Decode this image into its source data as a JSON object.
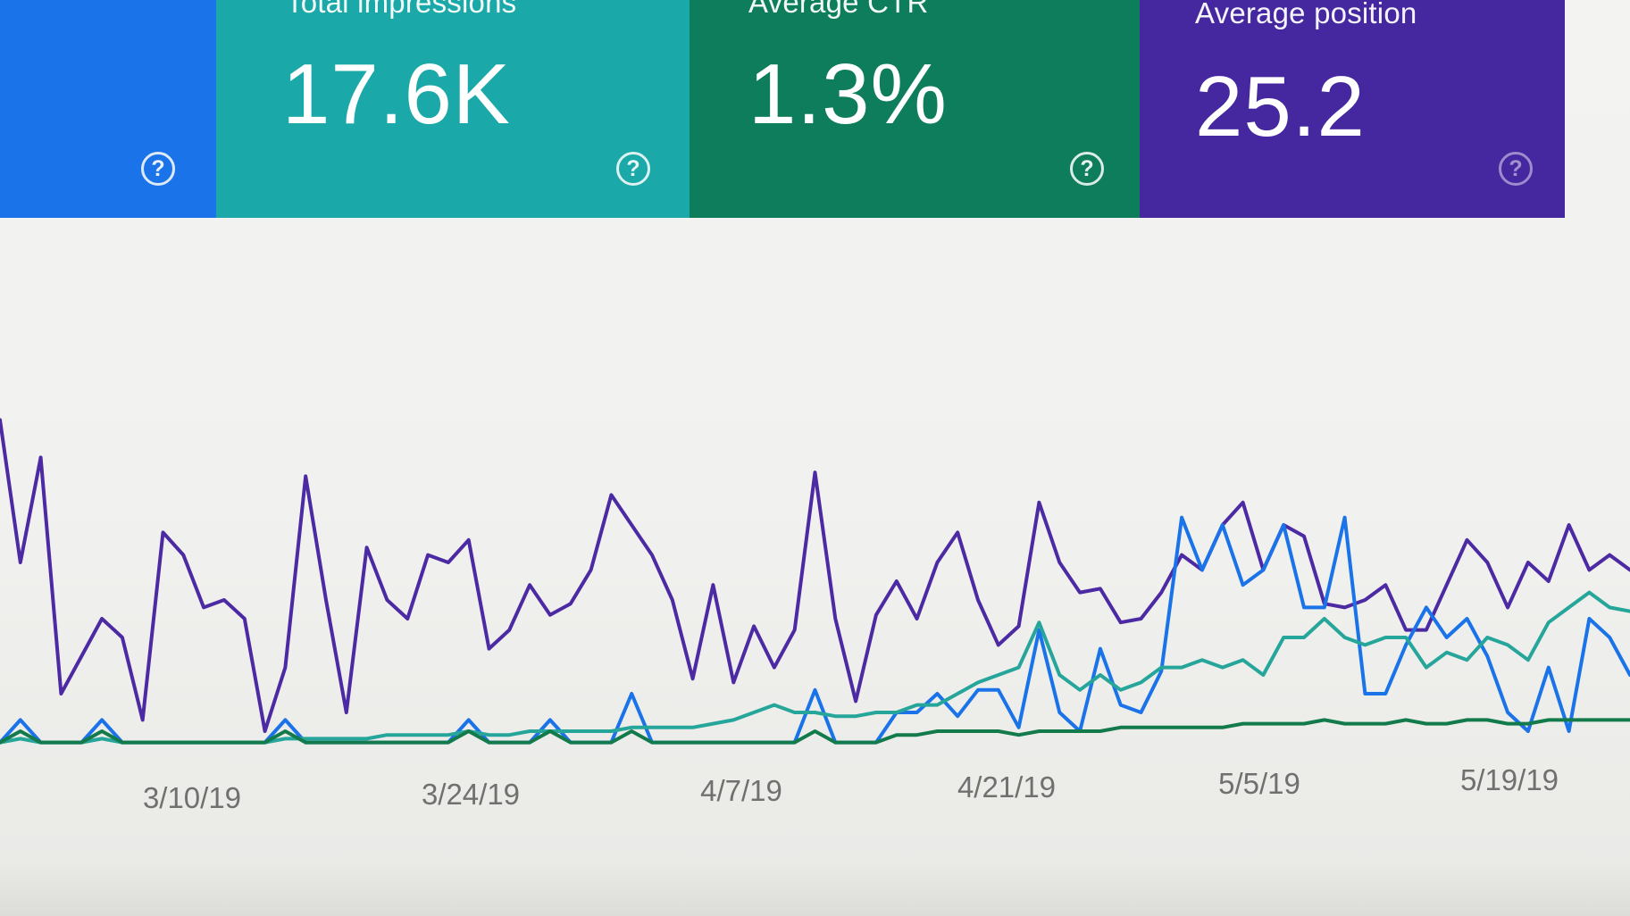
{
  "cards": [
    {
      "label": "",
      "value": "",
      "color": "#1a73e8",
      "help": "?"
    },
    {
      "label": "Total impressions",
      "value": "17.6K",
      "color": "#1aa8a8",
      "help": "?"
    },
    {
      "label": "Average CTR",
      "value": "1.3%",
      "color": "#0d7d5b",
      "help": "?"
    },
    {
      "label": "Average position",
      "value": "25.2",
      "color": "#4527a0",
      "help": "?"
    }
  ],
  "chart_data": {
    "type": "line",
    "x_tick_labels": [
      "3/10/19",
      "3/24/19",
      "4/7/19",
      "4/21/19",
      "5/5/19",
      "5/19/19"
    ],
    "ylim": [
      0,
      1
    ],
    "grid": false,
    "series": [
      {
        "color": "#4b2aa3",
        "values": [
          0.88,
          0.5,
          0.78,
          0.15,
          0.25,
          0.35,
          0.3,
          0.08,
          0.58,
          0.52,
          0.38,
          0.4,
          0.35,
          0.05,
          0.22,
          0.73,
          0.4,
          0.1,
          0.54,
          0.4,
          0.35,
          0.52,
          0.5,
          0.56,
          0.27,
          0.32,
          0.44,
          0.36,
          0.39,
          0.48,
          0.68,
          0.6,
          0.52,
          0.4,
          0.19,
          0.44,
          0.18,
          0.33,
          0.22,
          0.32,
          0.74,
          0.35,
          0.13,
          0.36,
          0.45,
          0.35,
          0.5,
          0.58,
          0.4,
          0.28,
          0.33,
          0.66,
          0.5,
          0.42,
          0.43,
          0.34,
          0.35,
          0.42,
          0.52,
          0.48,
          0.6,
          0.66,
          0.48,
          0.6,
          0.57,
          0.39,
          0.38,
          0.4,
          0.44,
          0.32,
          0.32,
          0.44,
          0.56,
          0.5,
          0.38,
          0.5,
          0.45,
          0.6,
          0.48,
          0.52,
          0.48
        ]
      },
      {
        "color": "#1a73e8",
        "values": [
          0.02,
          0.08,
          0.02,
          0.02,
          0.02,
          0.08,
          0.02,
          0.02,
          0.02,
          0.02,
          0.02,
          0.02,
          0.02,
          0.02,
          0.08,
          0.02,
          0.02,
          0.02,
          0.02,
          0.02,
          0.02,
          0.02,
          0.02,
          0.08,
          0.02,
          0.02,
          0.02,
          0.08,
          0.02,
          0.02,
          0.02,
          0.15,
          0.02,
          0.02,
          0.02,
          0.02,
          0.02,
          0.02,
          0.02,
          0.02,
          0.16,
          0.02,
          0.02,
          0.02,
          0.1,
          0.1,
          0.15,
          0.09,
          0.16,
          0.16,
          0.06,
          0.32,
          0.1,
          0.05,
          0.27,
          0.12,
          0.1,
          0.21,
          0.62,
          0.48,
          0.6,
          0.44,
          0.48,
          0.6,
          0.38,
          0.38,
          0.62,
          0.15,
          0.15,
          0.28,
          0.38,
          0.3,
          0.35,
          0.25,
          0.1,
          0.05,
          0.22,
          0.05,
          0.35,
          0.3,
          0.2
        ]
      },
      {
        "color": "#26a69a",
        "values": [
          0.02,
          0.03,
          0.02,
          0.02,
          0.02,
          0.03,
          0.02,
          0.02,
          0.02,
          0.02,
          0.02,
          0.02,
          0.02,
          0.02,
          0.03,
          0.03,
          0.03,
          0.03,
          0.03,
          0.04,
          0.04,
          0.04,
          0.04,
          0.05,
          0.04,
          0.04,
          0.05,
          0.05,
          0.05,
          0.05,
          0.05,
          0.06,
          0.06,
          0.06,
          0.06,
          0.07,
          0.08,
          0.1,
          0.12,
          0.1,
          0.1,
          0.09,
          0.09,
          0.1,
          0.1,
          0.12,
          0.12,
          0.15,
          0.18,
          0.2,
          0.22,
          0.34,
          0.2,
          0.16,
          0.2,
          0.16,
          0.18,
          0.22,
          0.22,
          0.24,
          0.22,
          0.24,
          0.2,
          0.3,
          0.3,
          0.35,
          0.3,
          0.28,
          0.3,
          0.3,
          0.22,
          0.26,
          0.24,
          0.3,
          0.28,
          0.24,
          0.34,
          0.38,
          0.42,
          0.38,
          0.37
        ]
      },
      {
        "color": "#137a4c",
        "values": [
          0.02,
          0.05,
          0.02,
          0.02,
          0.02,
          0.05,
          0.02,
          0.02,
          0.02,
          0.02,
          0.02,
          0.02,
          0.02,
          0.02,
          0.05,
          0.02,
          0.02,
          0.02,
          0.02,
          0.02,
          0.02,
          0.02,
          0.02,
          0.05,
          0.02,
          0.02,
          0.02,
          0.05,
          0.02,
          0.02,
          0.02,
          0.05,
          0.02,
          0.02,
          0.02,
          0.02,
          0.02,
          0.02,
          0.02,
          0.02,
          0.05,
          0.02,
          0.02,
          0.02,
          0.04,
          0.04,
          0.05,
          0.05,
          0.05,
          0.05,
          0.04,
          0.05,
          0.05,
          0.05,
          0.05,
          0.06,
          0.06,
          0.06,
          0.06,
          0.06,
          0.06,
          0.07,
          0.07,
          0.07,
          0.07,
          0.08,
          0.07,
          0.07,
          0.07,
          0.08,
          0.07,
          0.07,
          0.08,
          0.08,
          0.07,
          0.07,
          0.08,
          0.08,
          0.08,
          0.08,
          0.08
        ]
      }
    ]
  }
}
